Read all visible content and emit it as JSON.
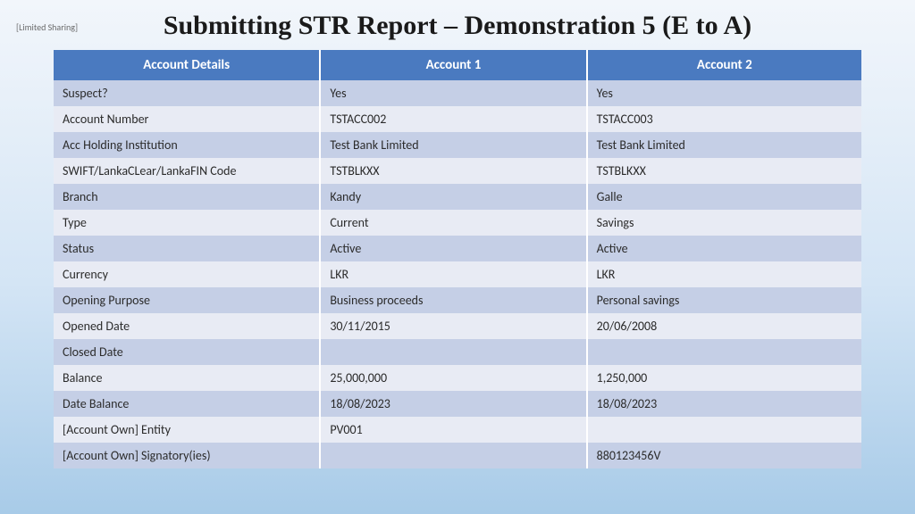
{
  "watermark": "[Limited Sharing]",
  "title": "Submitting STR Report – Demonstration 5 (E to A)",
  "table": {
    "header_bg": "#4a7ac0",
    "header_fg": "#ffffff",
    "band_a_bg": "#c5cfe6",
    "band_b_bg": "#e8ebf4",
    "columns": [
      "Account Details",
      "Account 1",
      "Account 2"
    ],
    "rows": [
      [
        "Suspect?",
        "Yes",
        "Yes"
      ],
      [
        "Account Number",
        "TSTACC002",
        "TSTACC003"
      ],
      [
        "Acc Holding Institution",
        "Test Bank Limited",
        "Test Bank Limited"
      ],
      [
        "SWIFT/LankaCLear/LankaFIN Code",
        "TSTBLKXX",
        "TSTBLKXX"
      ],
      [
        "Branch",
        "Kandy",
        "Galle"
      ],
      [
        "Type",
        "Current",
        "Savings"
      ],
      [
        "Status",
        "Active",
        "Active"
      ],
      [
        "Currency",
        "LKR",
        "LKR"
      ],
      [
        "Opening Purpose",
        "Business proceeds",
        "Personal savings"
      ],
      [
        "Opened Date",
        "30/11/2015",
        "20/06/2008"
      ],
      [
        "Closed Date",
        "",
        ""
      ],
      [
        "Balance",
        "25,000,000",
        "1,250,000"
      ],
      [
        "Date Balance",
        "18/08/2023",
        "18/08/2023"
      ],
      [
        "[Account Own] Entity",
        "PV001",
        ""
      ],
      [
        "[Account Own] Signatory(ies)",
        "",
        "880123456V"
      ]
    ]
  }
}
